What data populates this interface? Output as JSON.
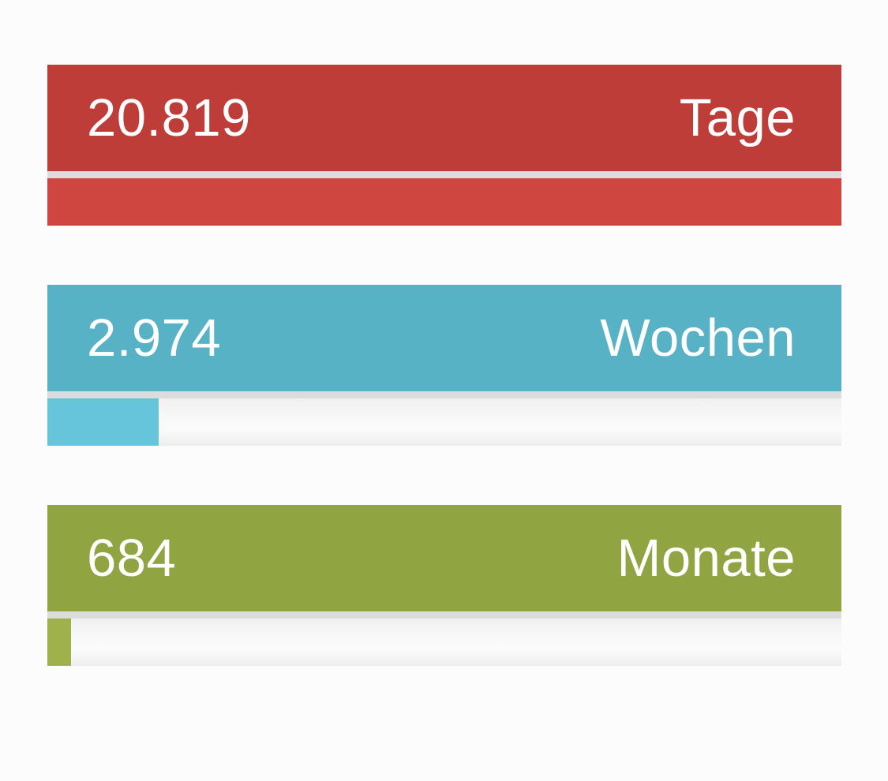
{
  "page": {
    "background_color": "#FCFCFC",
    "separator_color": "#DCDCDC",
    "text_color": "#FFFFFF"
  },
  "cards": [
    {
      "id": "days",
      "value": "20.819",
      "unit": "Tage",
      "header_color": "#BE3D38",
      "fill_color": "#CF4641",
      "progress_percent": 100
    },
    {
      "id": "weeks",
      "value": "2.974",
      "unit": "Wochen",
      "header_color": "#58B2C5",
      "fill_color": "#67C5DB",
      "progress_percent": 14
    },
    {
      "id": "months",
      "value": "684",
      "unit": "Monate",
      "header_color": "#90A441",
      "fill_color": "#9EB14B",
      "progress_percent": 3
    }
  ]
}
